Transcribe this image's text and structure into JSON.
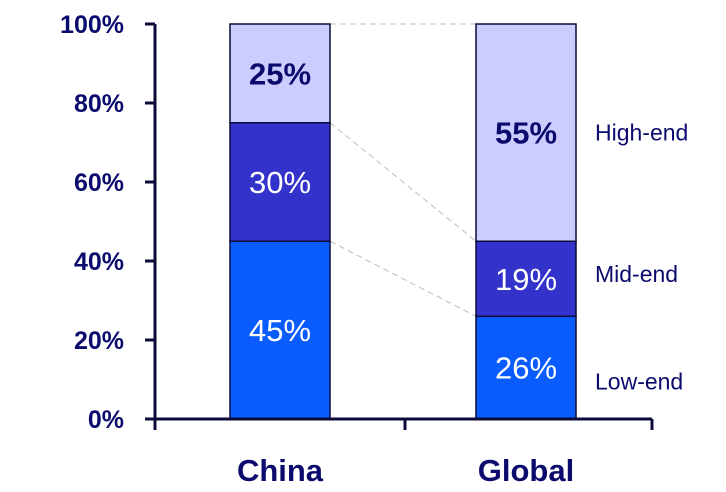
{
  "chart_data": {
    "type": "bar",
    "stacked": true,
    "categories": [
      "China",
      "Global"
    ],
    "series": [
      {
        "name": "Low-end",
        "values": [
          45,
          26
        ],
        "labels": [
          "45%",
          "26%"
        ],
        "color": "#0b5cff",
        "label_color": "#ffffff",
        "label_bold": false
      },
      {
        "name": "Mid-end",
        "values": [
          30,
          19
        ],
        "labels": [
          "30%",
          "19%"
        ],
        "color": "#3333cc",
        "label_color": "#ffffff",
        "label_bold": false
      },
      {
        "name": "High-end",
        "values": [
          25,
          55
        ],
        "labels": [
          "25%",
          "55%"
        ],
        "color": "#ccccff",
        "label_color": "#0b0b6e",
        "label_bold": true
      }
    ],
    "ylim": [
      0,
      100
    ],
    "yticks": [
      "0%",
      "20%",
      "40%",
      "60%",
      "80%",
      "100%"
    ],
    "grid": false,
    "legend": "right of last bar, beside segments",
    "connector_lines": true
  }
}
